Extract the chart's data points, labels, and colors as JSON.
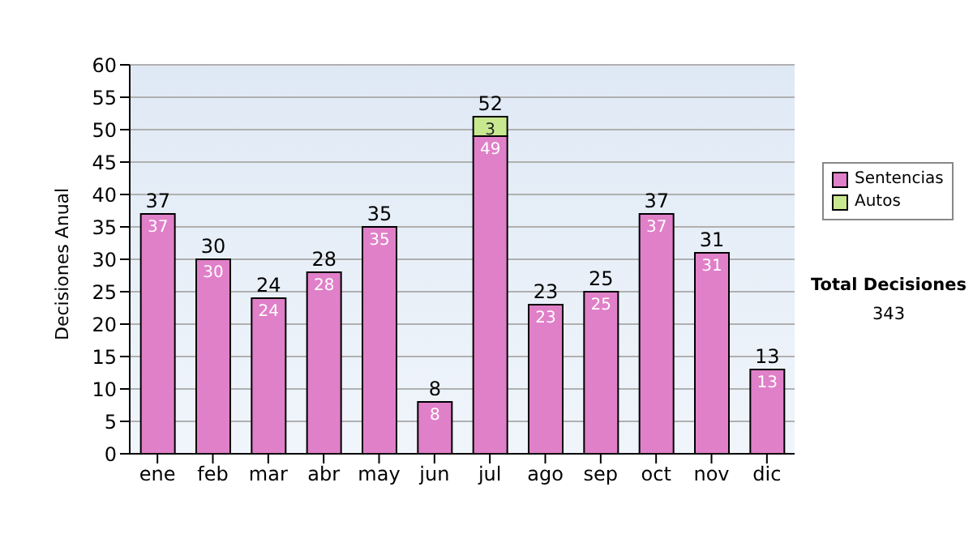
{
  "chart_data": {
    "type": "bar",
    "stacked": true,
    "ylabel": "Decisiones Anual",
    "categories": [
      "ene",
      "feb",
      "mar",
      "abr",
      "may",
      "jun",
      "jul",
      "ago",
      "sep",
      "oct",
      "nov",
      "dic"
    ],
    "series": [
      {
        "name": "Sentencias",
        "color": "#e080c8",
        "values": [
          37,
          30,
          24,
          28,
          35,
          8,
          49,
          23,
          25,
          37,
          31,
          13
        ]
      },
      {
        "name": "Autos",
        "color": "#c8e890",
        "values": [
          null,
          null,
          null,
          null,
          null,
          null,
          3,
          null,
          null,
          null,
          null,
          null
        ]
      }
    ],
    "totals": [
      "37",
      "30",
      "24",
      "28",
      "35",
      "8",
      "52",
      "23",
      "25",
      "37",
      "31",
      "13"
    ],
    "data_labels": true,
    "ylim": [
      0,
      60
    ],
    "yticks": [
      0,
      5,
      10,
      15,
      20,
      25,
      30,
      35,
      40,
      45,
      50,
      55,
      60
    ],
    "grid": "y",
    "legend": "right",
    "annotations": [
      "Total Decisiones",
      "343"
    ]
  }
}
